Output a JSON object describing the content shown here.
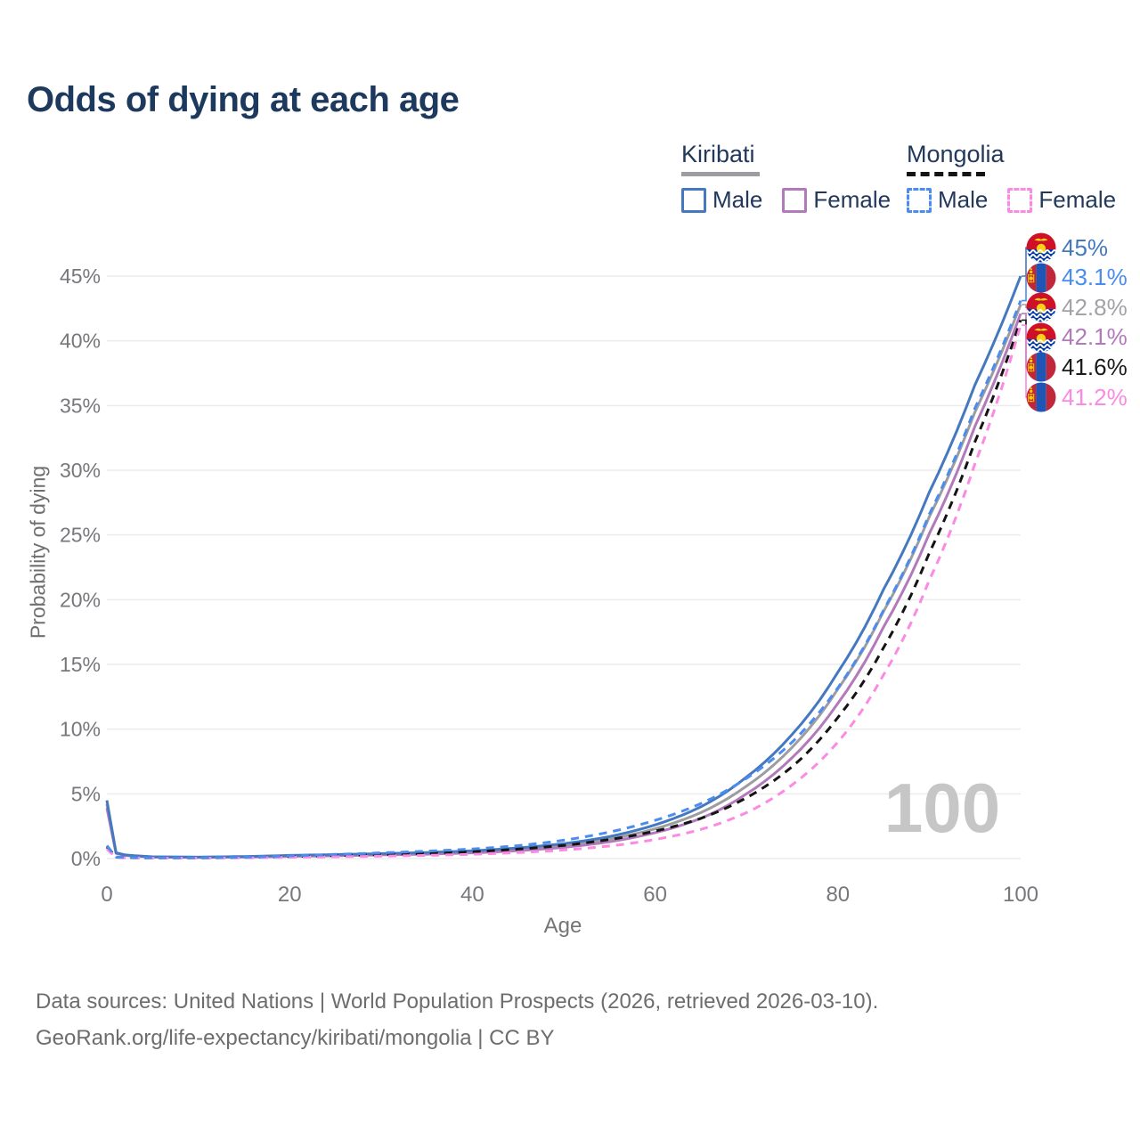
{
  "title": "Odds of dying at each age",
  "legend": {
    "groups": [
      {
        "name": "Kiribati",
        "line_style": "solid",
        "swatch_color": "#9c9ca1",
        "items": [
          {
            "label": "Male",
            "color": "#4478bf",
            "dashed": false
          },
          {
            "label": "Female",
            "color": "#b279bb",
            "dashed": false
          }
        ]
      },
      {
        "name": "Mongolia",
        "line_style": "dashed",
        "swatch_color": "#141414",
        "items": [
          {
            "label": "Male",
            "color": "#4a8cf0",
            "dashed": true
          },
          {
            "label": "Female",
            "color": "#fb8ae2",
            "dashed": true
          }
        ]
      }
    ]
  },
  "watermark": "100",
  "footer": {
    "line1": "Data sources: United Nations | World Population Prospects (2026, retrieved 2026-03-10).",
    "line2": "GeoRank.org/life-expectancy/kiribati/mongolia | CC BY"
  },
  "chart_data": {
    "type": "line",
    "title": "Odds of dying at each age",
    "xlabel": "Age",
    "ylabel": "Probability of dying",
    "xlim": [
      0,
      100
    ],
    "ylim_pct": [
      0,
      47
    ],
    "x_ticks": [
      0,
      20,
      40,
      60,
      80,
      100
    ],
    "y_ticks_pct": [
      0,
      5,
      10,
      15,
      20,
      25,
      30,
      35,
      40,
      45
    ],
    "grid": "horizontal",
    "legend_position": "top-right",
    "series": [
      {
        "id": "kiribati_all",
        "name": "Kiribati (both sexes)",
        "color": "#9c9ca1",
        "dashed": false,
        "points": [
          [
            0,
            4.2
          ],
          [
            1,
            0.43
          ],
          [
            2,
            0.26
          ],
          [
            5,
            0.13
          ],
          [
            10,
            0.1
          ],
          [
            15,
            0.14
          ],
          [
            20,
            0.21
          ],
          [
            25,
            0.27
          ],
          [
            30,
            0.33
          ],
          [
            35,
            0.4
          ],
          [
            40,
            0.52
          ],
          [
            45,
            0.71
          ],
          [
            50,
            1.0
          ],
          [
            55,
            1.5
          ],
          [
            60,
            2.3
          ],
          [
            65,
            3.55
          ],
          [
            70,
            5.6
          ],
          [
            75,
            8.6
          ],
          [
            80,
            13.1
          ],
          [
            85,
            19.1
          ],
          [
            90,
            26.4
          ],
          [
            95,
            34.5
          ],
          [
            100,
            42.8
          ]
        ]
      },
      {
        "id": "kiribati_female",
        "name": "Kiribati Female",
        "color": "#b279bb",
        "dashed": false,
        "points": [
          [
            0,
            3.9
          ],
          [
            1,
            0.4
          ],
          [
            2,
            0.24
          ],
          [
            5,
            0.12
          ],
          [
            10,
            0.09
          ],
          [
            15,
            0.12
          ],
          [
            20,
            0.17
          ],
          [
            25,
            0.22
          ],
          [
            30,
            0.28
          ],
          [
            35,
            0.34
          ],
          [
            40,
            0.44
          ],
          [
            45,
            0.61
          ],
          [
            50,
            0.87
          ],
          [
            55,
            1.3
          ],
          [
            60,
            2.0
          ],
          [
            65,
            3.1
          ],
          [
            70,
            5.0
          ],
          [
            75,
            7.8
          ],
          [
            80,
            12.0
          ],
          [
            85,
            17.9
          ],
          [
            90,
            25.1
          ],
          [
            95,
            33.4
          ],
          [
            100,
            42.1
          ]
        ]
      },
      {
        "id": "kiribati_male",
        "name": "Kiribati Male",
        "color": "#4478bf",
        "dashed": false,
        "points": [
          [
            0,
            4.5
          ],
          [
            1,
            0.45
          ],
          [
            2,
            0.28
          ],
          [
            5,
            0.14
          ],
          [
            10,
            0.11
          ],
          [
            15,
            0.16
          ],
          [
            20,
            0.25
          ],
          [
            25,
            0.31
          ],
          [
            30,
            0.38
          ],
          [
            35,
            0.47
          ],
          [
            40,
            0.6
          ],
          [
            45,
            0.82
          ],
          [
            50,
            1.15
          ],
          [
            55,
            1.7
          ],
          [
            60,
            2.6
          ],
          [
            65,
            4.0
          ],
          [
            70,
            6.3
          ],
          [
            75,
            9.6
          ],
          [
            80,
            14.4
          ],
          [
            85,
            20.8
          ],
          [
            90,
            28.3
          ],
          [
            95,
            36.6
          ],
          [
            100,
            45.0
          ]
        ]
      },
      {
        "id": "mongolia_all",
        "name": "Mongolia (both sexes)",
        "color": "#141414",
        "dashed": true,
        "points": [
          [
            0,
            0.9
          ],
          [
            1,
            0.1
          ],
          [
            2,
            0.07
          ],
          [
            5,
            0.05
          ],
          [
            10,
            0.05
          ],
          [
            15,
            0.09
          ],
          [
            20,
            0.16
          ],
          [
            25,
            0.23
          ],
          [
            30,
            0.31
          ],
          [
            35,
            0.41
          ],
          [
            40,
            0.53
          ],
          [
            45,
            0.73
          ],
          [
            50,
            1.02
          ],
          [
            55,
            1.47
          ],
          [
            60,
            2.12
          ],
          [
            65,
            3.1
          ],
          [
            70,
            4.7
          ],
          [
            75,
            7.1
          ],
          [
            80,
            10.9
          ],
          [
            85,
            16.3
          ],
          [
            90,
            23.6
          ],
          [
            95,
            32.2
          ],
          [
            100,
            41.6
          ]
        ]
      },
      {
        "id": "mongolia_female",
        "name": "Mongolia Female",
        "color": "#fb8ae2",
        "dashed": true,
        "points": [
          [
            0,
            0.75
          ],
          [
            1,
            0.08
          ],
          [
            2,
            0.06
          ],
          [
            5,
            0.04
          ],
          [
            10,
            0.04
          ],
          [
            15,
            0.06
          ],
          [
            20,
            0.1
          ],
          [
            25,
            0.14
          ],
          [
            30,
            0.19
          ],
          [
            35,
            0.25
          ],
          [
            40,
            0.33
          ],
          [
            45,
            0.46
          ],
          [
            50,
            0.66
          ],
          [
            55,
            0.97
          ],
          [
            60,
            1.47
          ],
          [
            65,
            2.25
          ],
          [
            70,
            3.55
          ],
          [
            75,
            5.7
          ],
          [
            80,
            9.0
          ],
          [
            85,
            14.2
          ],
          [
            90,
            21.5
          ],
          [
            95,
            30.5
          ],
          [
            100,
            41.2
          ]
        ]
      },
      {
        "id": "mongolia_male",
        "name": "Mongolia Male",
        "color": "#4a8cf0",
        "dashed": true,
        "points": [
          [
            0,
            1.0
          ],
          [
            1,
            0.12
          ],
          [
            2,
            0.08
          ],
          [
            5,
            0.06
          ],
          [
            10,
            0.06
          ],
          [
            15,
            0.11
          ],
          [
            20,
            0.21
          ],
          [
            25,
            0.32
          ],
          [
            30,
            0.44
          ],
          [
            35,
            0.57
          ],
          [
            40,
            0.74
          ],
          [
            45,
            1.0
          ],
          [
            50,
            1.42
          ],
          [
            55,
            2.05
          ],
          [
            60,
            2.95
          ],
          [
            65,
            4.25
          ],
          [
            70,
            6.2
          ],
          [
            75,
            9.0
          ],
          [
            80,
            13.2
          ],
          [
            85,
            19.2
          ],
          [
            90,
            26.6
          ],
          [
            95,
            34.8
          ],
          [
            100,
            43.1
          ]
        ]
      }
    ],
    "end_labels": [
      {
        "text": "45%",
        "value_pct": 45.0,
        "flag": "kiribati",
        "series": "kiribati_male",
        "color": "#4478bf"
      },
      {
        "text": "43.1%",
        "value_pct": 43.1,
        "flag": "mongolia",
        "series": "mongolia_male",
        "color": "#4a8cf0"
      },
      {
        "text": "42.8%",
        "value_pct": 42.8,
        "flag": "kiribati",
        "series": "kiribati_all",
        "color": "#a2a2a7"
      },
      {
        "text": "42.1%",
        "value_pct": 42.1,
        "flag": "kiribati",
        "series": "kiribati_female",
        "color": "#b279bb"
      },
      {
        "text": "41.6%",
        "value_pct": 41.6,
        "flag": "mongolia",
        "series": "mongolia_all",
        "color": "#1a1a1a"
      },
      {
        "text": "41.2%",
        "value_pct": 41.2,
        "flag": "mongolia",
        "series": "mongolia_female",
        "color": "#fb8ae2"
      }
    ]
  }
}
